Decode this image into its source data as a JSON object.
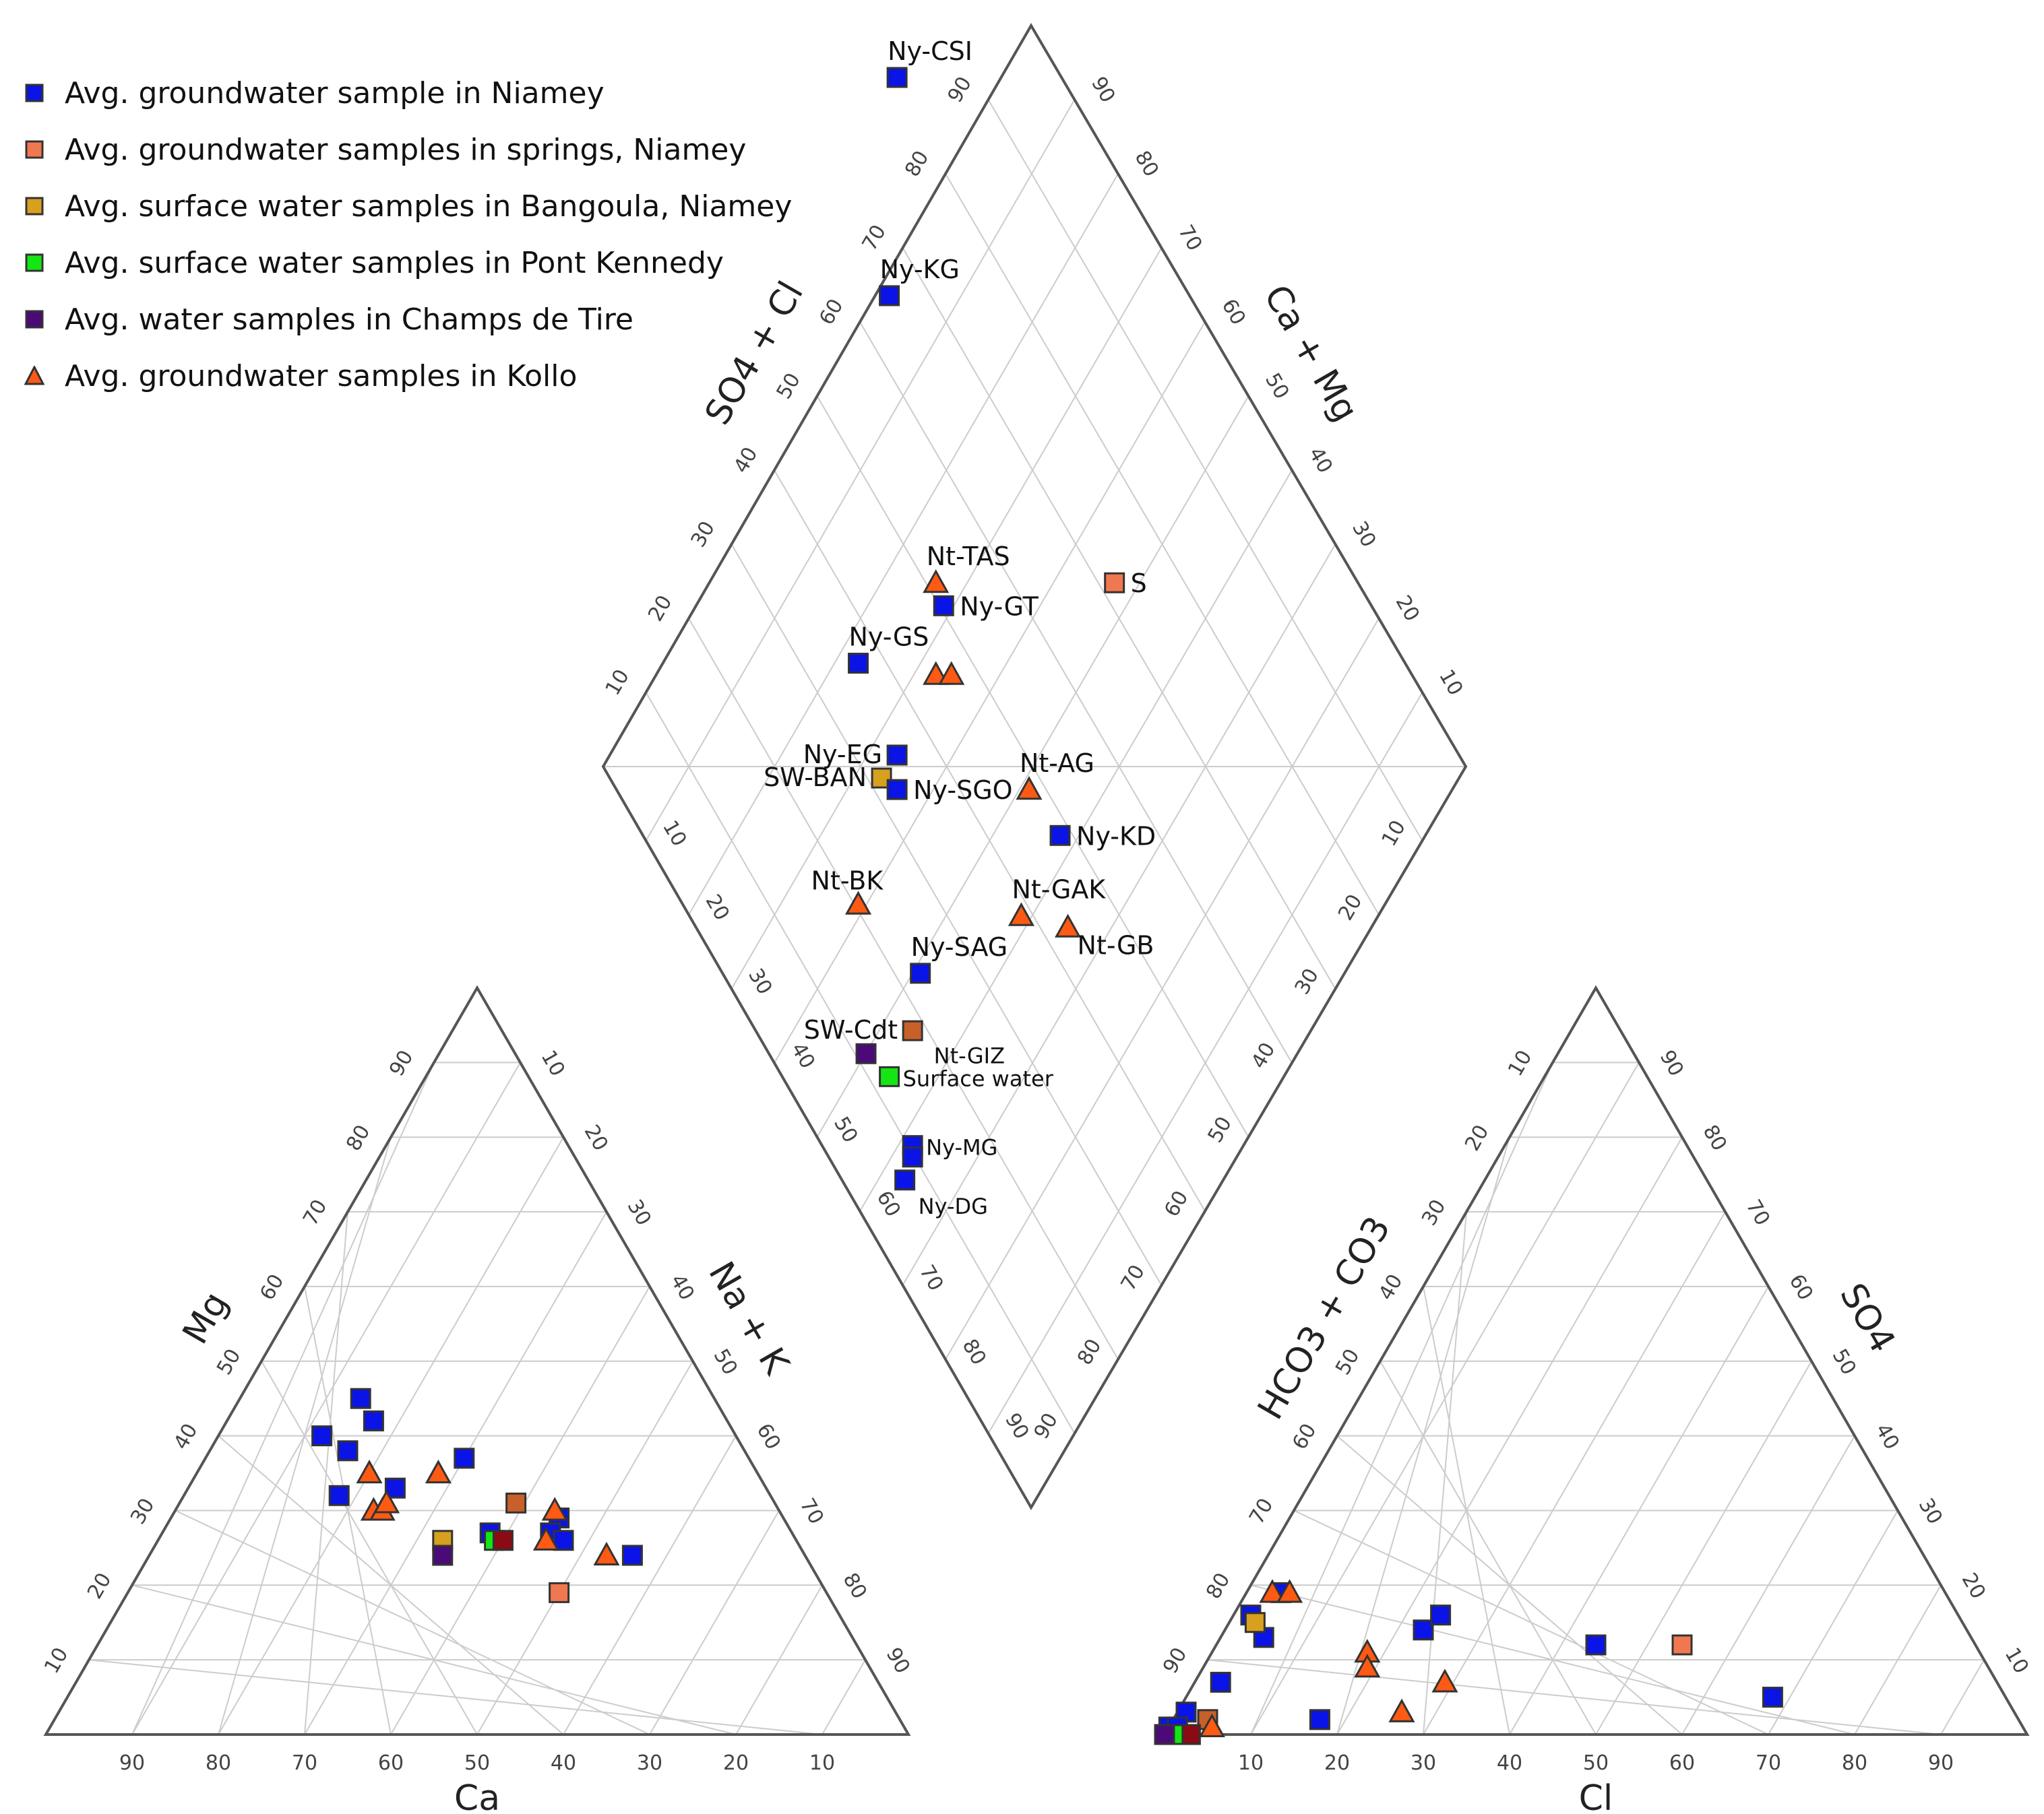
{
  "chart_data": {
    "type": "scatter",
    "subtype": "piper-diagram",
    "colors": {
      "niamey": "#0a14e6",
      "springs": "#f07850",
      "bangoula": "#d7a01e",
      "pont_kennedy": "#14e614",
      "champs_de_tire": "#4b0a78",
      "kollo": "#ff5a14",
      "brown": "#c8602a",
      "darkred": "#8c0a14",
      "grid": "#cccccc",
      "axis": "#555555"
    },
    "legend": [
      {
        "label": "Avg. groundwater sample in Niamey",
        "marker": "square",
        "color": "#0a14e6"
      },
      {
        "label": "Avg. groundwater samples in springs, Niamey",
        "marker": "square",
        "color": "#f07850"
      },
      {
        "label": "Avg. surface water samples in Bangoula, Niamey",
        "marker": "square",
        "color": "#d7a01e"
      },
      {
        "label": "Avg. surface water samples in Pont Kennedy",
        "marker": "square",
        "color": "#14e614"
      },
      {
        "label": "Avg. water samples in Champs de Tire",
        "marker": "square",
        "color": "#4b0a78"
      },
      {
        "label": "Avg. groundwater samples in Kollo",
        "marker": "triangle",
        "color": "#ff5a14"
      }
    ],
    "axes": {
      "cation": {
        "bottom": "Ca",
        "left": "Mg",
        "right": "Na + K"
      },
      "anion": {
        "bottom": "Cl",
        "left": "HCO3 + CO3",
        "right": "SO4"
      },
      "diamond": {
        "left": "SO4 + Cl",
        "right": "Ca + Mg"
      }
    },
    "tick_values": [
      10,
      20,
      30,
      40,
      50,
      60,
      70,
      80,
      90
    ],
    "cation_points": [
      {
        "ca": 41,
        "mg": 45,
        "marker": "square",
        "color": "#0a14e6"
      },
      {
        "ca": 41,
        "mg": 42,
        "marker": "square",
        "color": "#0a14e6"
      },
      {
        "ca": 48,
        "mg": 40,
        "marker": "square",
        "color": "#0a14e6"
      },
      {
        "ca": 46,
        "mg": 38,
        "marker": "square",
        "color": "#0a14e6"
      },
      {
        "ca": 50,
        "mg": 32,
        "marker": "square",
        "color": "#0a14e6"
      },
      {
        "ca": 33,
        "mg": 37,
        "marker": "square",
        "color": "#0a14e6"
      },
      {
        "ca": 43,
        "mg": 33,
        "marker": "square",
        "color": "#0a14e6"
      },
      {
        "ca": 26,
        "mg": 29,
        "marker": "square",
        "color": "#0a14e6"
      },
      {
        "ca": 20,
        "mg": 24,
        "marker": "square",
        "color": "#0a14e6"
      },
      {
        "ca": 41,
        "mg": 26,
        "marker": "square",
        "color": "#d7a01e"
      },
      {
        "ca": 30,
        "mg": 31,
        "marker": "square",
        "color": "#c8602a"
      },
      {
        "ca": 35,
        "mg": 27,
        "marker": "square",
        "color": "#0a14e6"
      },
      {
        "ca": 35,
        "mg": 26,
        "marker": "square",
        "color": "#14e614"
      },
      {
        "ca": 34,
        "mg": 26,
        "marker": "square",
        "color": "#8c0a14"
      },
      {
        "ca": 42,
        "mg": 24,
        "marker": "square",
        "color": "#4b0a78"
      },
      {
        "ca": 31,
        "mg": 19,
        "marker": "square",
        "color": "#f07850"
      },
      {
        "ca": 28,
        "mg": 27,
        "marker": "square",
        "color": "#0a14e6"
      },
      {
        "ca": 27,
        "mg": 26,
        "marker": "square",
        "color": "#0a14e6"
      },
      {
        "ca": 37,
        "mg": 35,
        "marker": "triangle",
        "color": "#ff5a14"
      },
      {
        "ca": 45,
        "mg": 35,
        "marker": "triangle",
        "color": "#ff5a14"
      },
      {
        "ca": 47,
        "mg": 30,
        "marker": "triangle",
        "color": "#ff5a14"
      },
      {
        "ca": 46,
        "mg": 30,
        "marker": "triangle",
        "color": "#ff5a14"
      },
      {
        "ca": 45,
        "mg": 31,
        "marker": "triangle",
        "color": "#ff5a14"
      },
      {
        "ca": 26,
        "mg": 30,
        "marker": "triangle",
        "color": "#ff5a14"
      },
      {
        "ca": 29,
        "mg": 26,
        "marker": "triangle",
        "color": "#ff5a14"
      },
      {
        "ca": 23,
        "mg": 24,
        "marker": "triangle",
        "color": "#ff5a14"
      }
    ],
    "anion_points": [
      {
        "cl": 5,
        "so4": 13,
        "marker": "square",
        "color": "#0a14e6"
      },
      {
        "cl": 4,
        "so4": 19,
        "marker": "square",
        "color": "#0a14e6"
      },
      {
        "cl": 2,
        "so4": 16,
        "marker": "square",
        "color": "#0a14e6"
      },
      {
        "cl": 3,
        "so4": 7,
        "marker": "square",
        "color": "#0a14e6"
      },
      {
        "cl": 17,
        "so4": 2,
        "marker": "square",
        "color": "#0a14e6"
      },
      {
        "cl": 23,
        "so4": 14,
        "marker": "square",
        "color": "#0a14e6"
      },
      {
        "cl": 24,
        "so4": 16,
        "marker": "square",
        "color": "#0a14e6"
      },
      {
        "cl": 44,
        "so4": 12,
        "marker": "square",
        "color": "#0a14e6"
      },
      {
        "cl": 68,
        "so4": 5,
        "marker": "square",
        "color": "#0a14e6"
      },
      {
        "cl": 1,
        "so4": 3,
        "marker": "square",
        "color": "#0a14e6"
      },
      {
        "cl": 0,
        "so4": 1,
        "marker": "square",
        "color": "#0a14e6"
      },
      {
        "cl": 1,
        "so4": 1,
        "marker": "square",
        "color": "#0a14e6"
      },
      {
        "cl": 54,
        "so4": 12,
        "marker": "square",
        "color": "#f07850"
      },
      {
        "cl": 3,
        "so4": 15,
        "marker": "square",
        "color": "#d7a01e"
      },
      {
        "cl": 4,
        "so4": 2,
        "marker": "square",
        "color": "#c8602a"
      },
      {
        "cl": 3,
        "so4": 0,
        "marker": "square",
        "color": "#8c0a14"
      },
      {
        "cl": 1,
        "so4": 0,
        "marker": "square",
        "color": "#14e614"
      },
      {
        "cl": 0,
        "so4": 0,
        "marker": "square",
        "color": "#4b0a78"
      },
      {
        "cl": 3,
        "so4": 19,
        "marker": "triangle",
        "color": "#ff5a14"
      },
      {
        "cl": 5,
        "so4": 19,
        "marker": "triangle",
        "color": "#ff5a14"
      },
      {
        "cl": 18,
        "so4": 11,
        "marker": "triangle",
        "color": "#ff5a14"
      },
      {
        "cl": 19,
        "so4": 9,
        "marker": "triangle",
        "color": "#ff5a14"
      },
      {
        "cl": 29,
        "so4": 7,
        "marker": "triangle",
        "color": "#ff5a14"
      },
      {
        "cl": 26,
        "so4": 3,
        "marker": "triangle",
        "color": "#ff5a14"
      },
      {
        "cl": 5,
        "so4": 1,
        "marker": "triangle",
        "color": "#ff5a14"
      }
    ],
    "diamond_points": [
      {
        "label": "Ny-CSI",
        "so4_cl": 60,
        "ca_mg": 69,
        "marker": "square",
        "color": "#0a14e6",
        "label_pos": "above"
      },
      {
        "label": "Ny-KG",
        "so4_cl": 41,
        "ca_mg": 70,
        "marker": "square",
        "color": "#0a14e6",
        "label_pos": "above"
      },
      {
        "label": "S",
        "so4_cl": 16,
        "ca_mg": 41,
        "marker": "square",
        "color": "#f07850",
        "label_pos": "right"
      },
      {
        "label": "Nt-TAS",
        "so4_cl": 16,
        "ca_mg": 64,
        "marker": "triangle",
        "color": "#ff5a14",
        "label_pos": "above"
      },
      {
        "label": "Ny-GT",
        "so4_cl": 14,
        "ca_mg": 63,
        "marker": "square",
        "color": "#0a14e6",
        "label_pos": "right"
      },
      {
        "label": "Ny-GS",
        "so4_cl": 9,
        "ca_mg": 74,
        "marker": "square",
        "color": "#0a14e6",
        "label_pos": "above"
      },
      {
        "label": "",
        "so4_cl": 8,
        "ca_mg": 64,
        "marker": "triangle",
        "color": "#ff5a14",
        "label_pos": "none"
      },
      {
        "label": "",
        "so4_cl": 8,
        "ca_mg": 62,
        "marker": "triangle",
        "color": "#ff5a14",
        "label_pos": "none"
      },
      {
        "label": "Ny-EG",
        "so4_cl": 1,
        "ca_mg": 69,
        "marker": "square",
        "color": "#0a14e6",
        "label_pos": "left"
      },
      {
        "label": "SW-BAN",
        "so4_cl": -1,
        "ca_mg": 71,
        "marker": "square",
        "color": "#d7a01e",
        "label_pos": "left"
      },
      {
        "label": "Ny-SGO",
        "so4_cl": -2,
        "ca_mg": 69,
        "marker": "square",
        "color": "#0a14e6",
        "label_pos": "right"
      },
      {
        "label": "Nt-AG",
        "so4_cl": -2,
        "ca_mg": 52,
        "marker": "triangle",
        "color": "#ff5a14",
        "label_pos": "above"
      },
      {
        "label": "Ny-KD",
        "so4_cl": -6,
        "ca_mg": 48,
        "marker": "square",
        "color": "#0a14e6",
        "label_pos": "right"
      },
      {
        "label": "Nt-BK",
        "so4_cl": -12,
        "ca_mg": 74,
        "marker": "triangle",
        "color": "#ff5a14",
        "label_pos": "above-left"
      },
      {
        "label": "Ny-SAG",
        "so4_cl": -18,
        "ca_mg": 66,
        "marker": "square",
        "color": "#0a14e6",
        "label_pos": "above"
      },
      {
        "label": "Nt-GAK",
        "so4_cl": -13,
        "ca_mg": 53,
        "marker": "triangle",
        "color": "#ff5a14",
        "label_pos": "above"
      },
      {
        "label": "Nt-GB",
        "so4_cl": -14,
        "ca_mg": 47,
        "marker": "triangle",
        "color": "#ff5a14",
        "label_pos": "below-right"
      },
      {
        "label": "SW-Cdt",
        "so4_cl": -23,
        "ca_mg": 67,
        "marker": "square",
        "color": "#c8602a",
        "label_pos": "left"
      },
      {
        "label": "Nt-GIZ",
        "so4_cl": -25,
        "ca_mg": 66,
        "marker": "none",
        "color": "#000000",
        "label_pos": "right-small"
      },
      {
        "label": "",
        "so4_cl": -25,
        "ca_mg": 73,
        "marker": "square",
        "color": "#4b0a78",
        "label_pos": "none"
      },
      {
        "label": "Surface water",
        "so4_cl": -27,
        "ca_mg": 70,
        "marker": "square",
        "color": "#14e614",
        "label_pos": "right-small"
      },
      {
        "label": "Ny-MG",
        "so4_cl": -33,
        "ca_mg": 67,
        "marker": "square",
        "color": "#0a14e6",
        "label_pos": "right-small"
      },
      {
        "label": "",
        "so4_cl": -34,
        "ca_mg": 67,
        "marker": "square",
        "color": "#0a14e6",
        "label_pos": "none"
      },
      {
        "label": "Ny-DG",
        "so4_cl": -36,
        "ca_mg": 68,
        "marker": "square",
        "color": "#0a14e6",
        "label_pos": "below-right-small"
      }
    ]
  }
}
